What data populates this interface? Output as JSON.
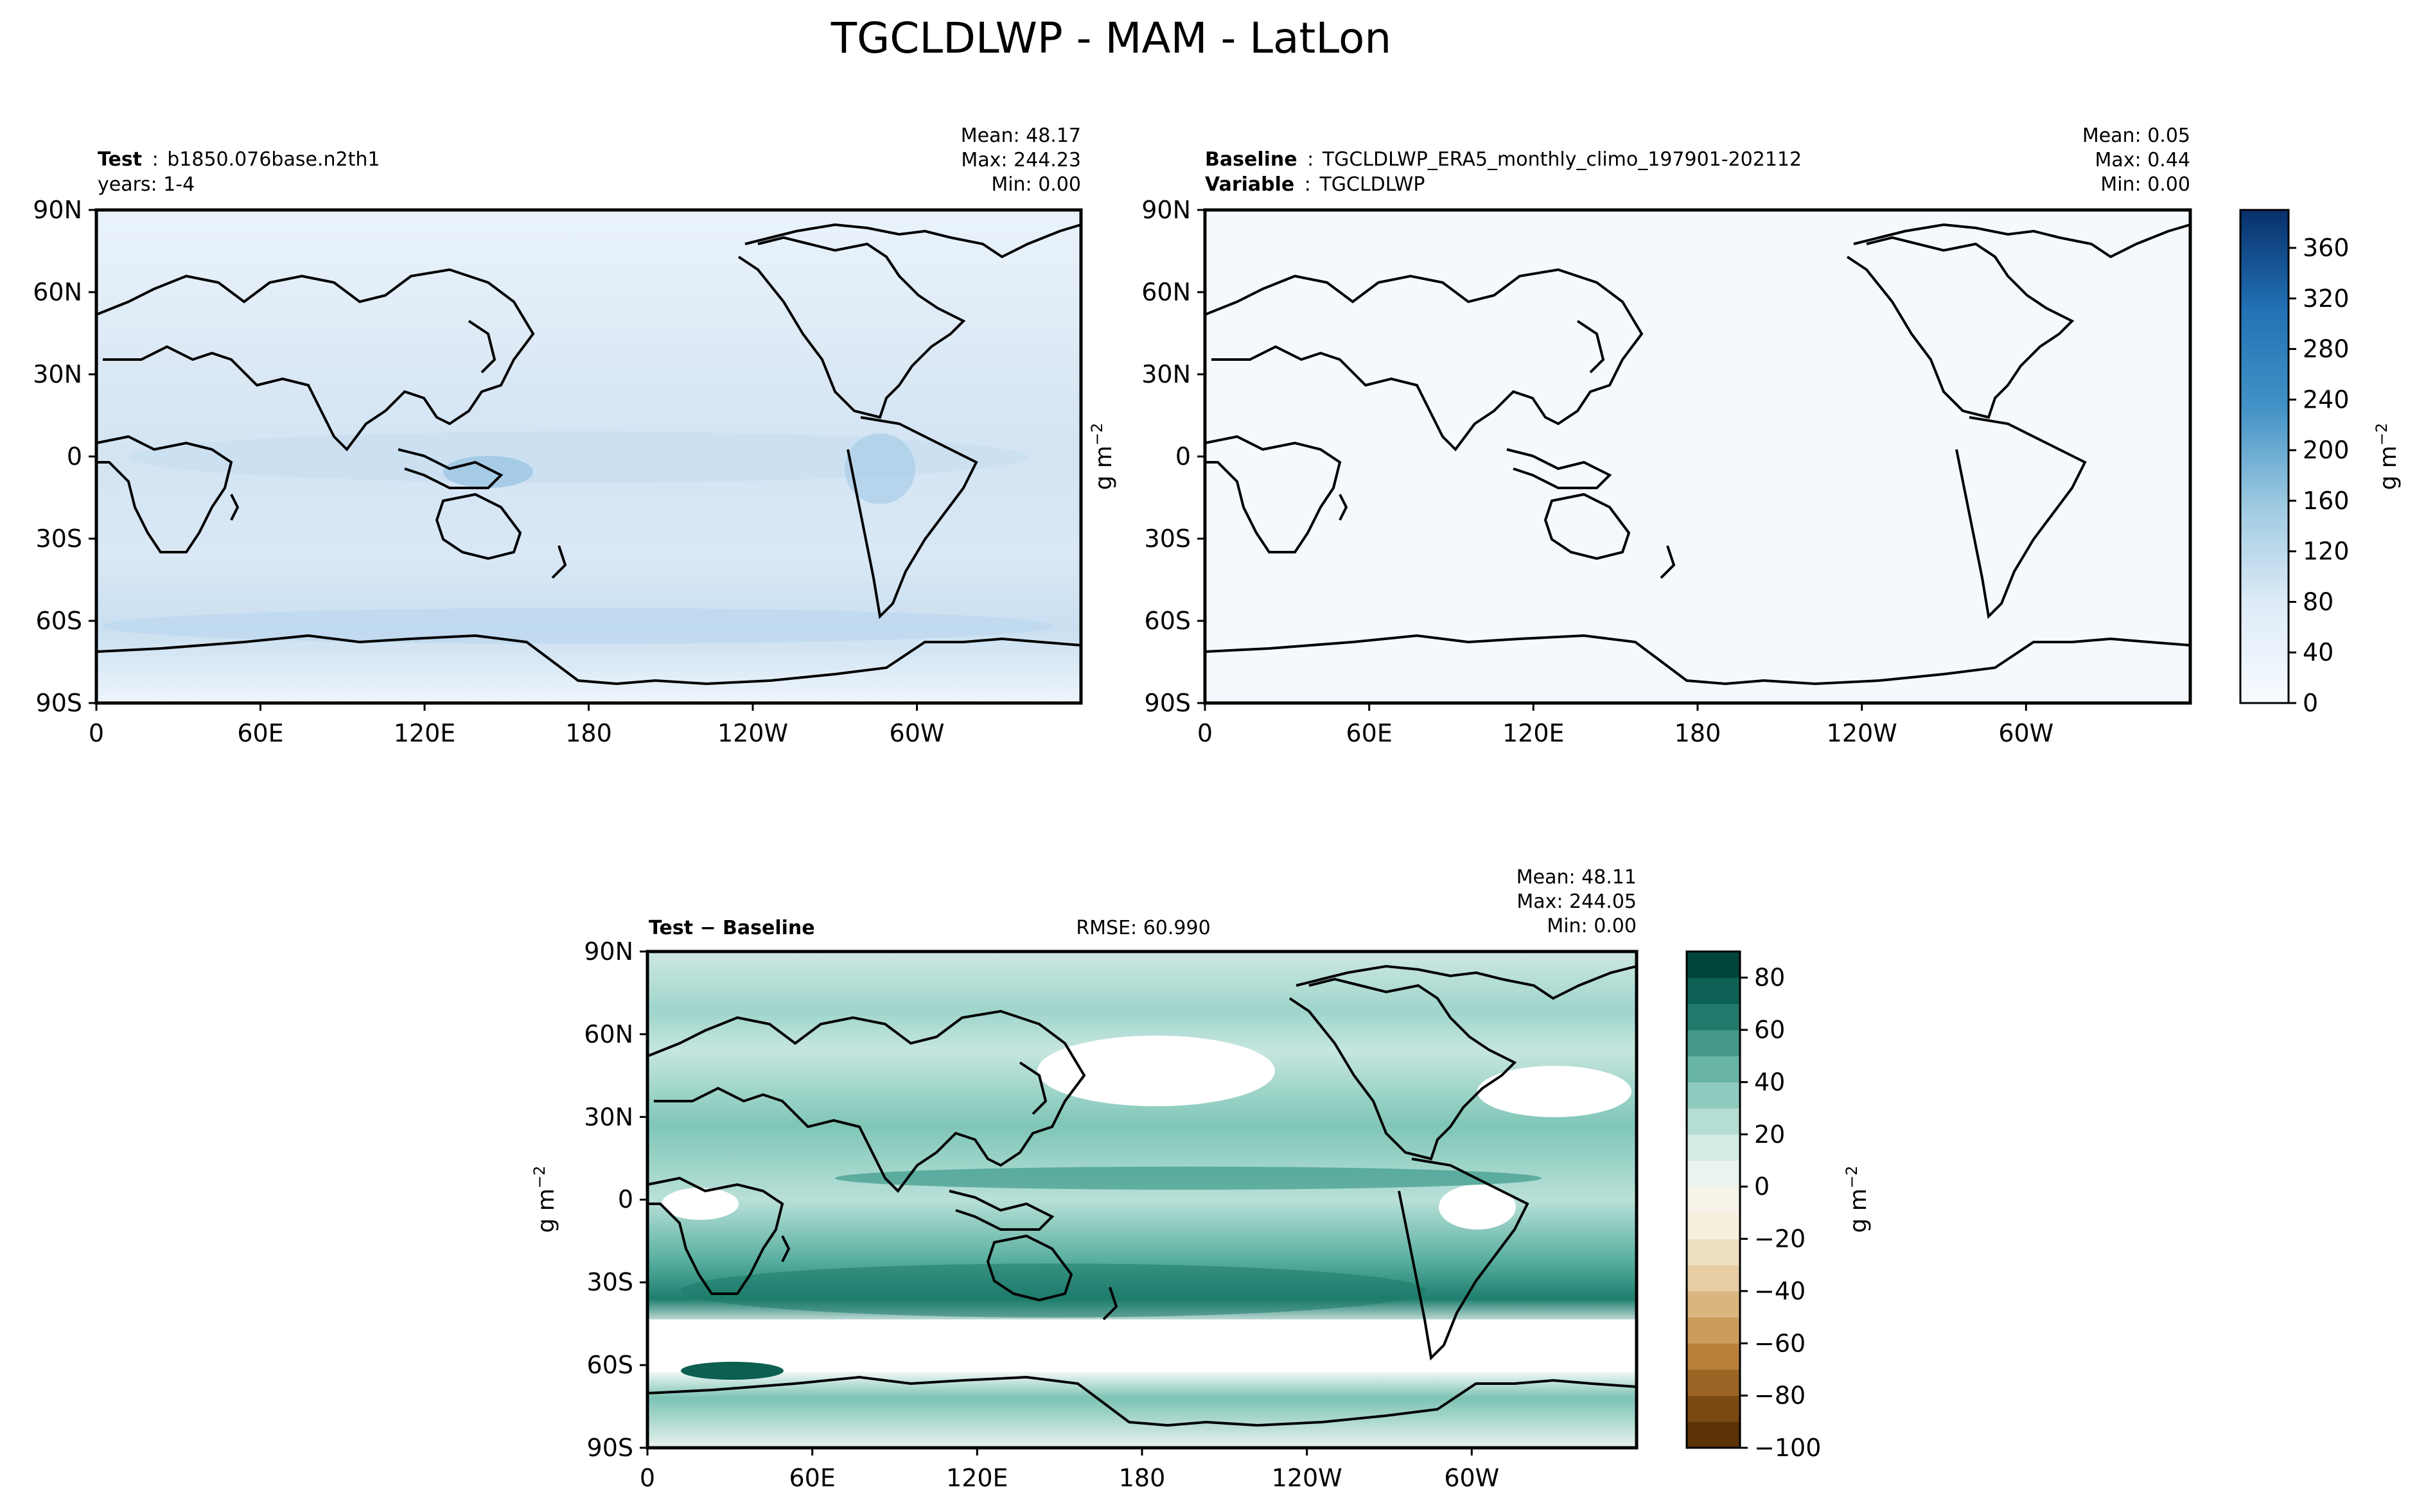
{
  "title": "TGCLDLWP - MAM - LatLon",
  "chart_data": [
    {
      "type": "heatmap",
      "panel": "test",
      "header": {
        "label": "Test",
        "sep": ":",
        "value": "b1850.076base.n2th1",
        "line2": "years: 1-4"
      },
      "stats": {
        "mean": "Mean: 48.17",
        "max": "Max: 244.23",
        "min": "Min:  0.00"
      },
      "xticks": [
        "0",
        "60E",
        "120E",
        "180",
        "120W",
        "60W"
      ],
      "yticks": [
        "90N",
        "60N",
        "30N",
        "0",
        "30S",
        "60S",
        "90S"
      ],
      "xlim": [
        0,
        360
      ],
      "ylim": [
        -90,
        90
      ],
      "fill": {
        "mean": 48.17,
        "max": 244.23,
        "min": 0.0
      }
    },
    {
      "type": "heatmap",
      "panel": "baseline",
      "header": {
        "label": "Baseline",
        "sep": ":",
        "value": "TGCLDLWP_ERA5_monthly_climo_197901-202112",
        "label2": "Variable",
        "value2": "TGCLDLWP"
      },
      "stats": {
        "mean": "Mean:  0.05",
        "max": "Max:  0.44",
        "min": "Min:  0.00"
      },
      "ylabel": "g m",
      "ylabel_sup": "−2",
      "xticks": [
        "0",
        "60E",
        "120E",
        "180",
        "120W",
        "60W"
      ],
      "yticks": [
        "90N",
        "60N",
        "30N",
        "0",
        "30S",
        "60S",
        "90S"
      ],
      "xlim": [
        0,
        360
      ],
      "ylim": [
        -90,
        90
      ],
      "colorbar": {
        "ticks": [
          "0",
          "40",
          "80",
          "120",
          "160",
          "200",
          "240",
          "280",
          "320",
          "360"
        ],
        "range": [
          0,
          390
        ],
        "label": "g m",
        "label_sup": "−2",
        "colors": [
          "#f7fbff",
          "#08306b"
        ]
      }
    },
    {
      "type": "heatmap",
      "panel": "difference",
      "header": {
        "label": "Test − Baseline",
        "rmse": "RMSE: 60.990"
      },
      "stats": {
        "mean": "Mean: 48.11",
        "max": "Max: 244.05",
        "min": "Min:  0.00"
      },
      "ylabel": "g m",
      "ylabel_sup": "−2",
      "xticks": [
        "0",
        "60E",
        "120E",
        "180",
        "120W",
        "60W"
      ],
      "yticks": [
        "90N",
        "60N",
        "30N",
        "0",
        "30S",
        "60S",
        "90S"
      ],
      "xlim": [
        0,
        360
      ],
      "ylim": [
        -90,
        90
      ],
      "colorbar": {
        "ticks": [
          "−100",
          "−80",
          "−60",
          "−40",
          "−20",
          "0",
          "20",
          "40",
          "60",
          "80"
        ],
        "range": [
          -100,
          90
        ],
        "label": "g m",
        "label_sup": "−2"
      }
    }
  ],
  "colors": {
    "blues_low": "#f7fbff",
    "blues_high": "#08306b",
    "diff_pos_low": "#e5f2ef",
    "diff_pos_high": "#00443a",
    "diff_neg_low": "#f6efdc",
    "diff_neg_high": "#5a3206"
  }
}
